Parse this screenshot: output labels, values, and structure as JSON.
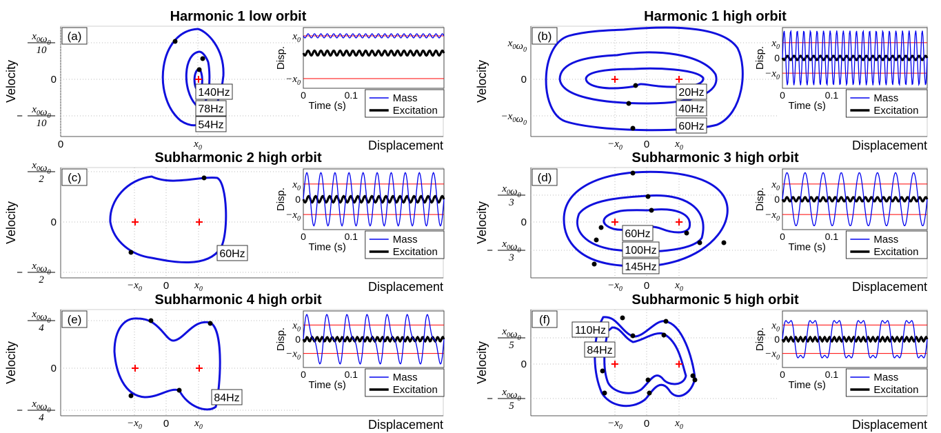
{
  "colors": {
    "orbit": "#1010dd",
    "mass": "#0000ee",
    "excitation": "#000000",
    "threshold": "#ff0000",
    "marker": "#ff0000",
    "grid": "#b8b8b8"
  },
  "chart_data": [
    {
      "id": "a",
      "type": "line",
      "title": "Harmonic 1 low orbit",
      "panel_label": "(a)",
      "xlabel": "Displacement",
      "ylabel": "Velocity",
      "xticks": [
        "0",
        "x0"
      ],
      "yticks": [
        "x0ω0/10",
        "0",
        "−x0ω0/10"
      ],
      "frequencies": [
        "140Hz",
        "78Hz",
        "54Hz"
      ],
      "inset": {
        "ylabel": "Disp.",
        "xlabel": "Time (s)",
        "xticks": [
          "0",
          "0.1"
        ],
        "yticks": [
          "x0",
          "−x0"
        ],
        "legend": [
          "Mass",
          "Excitation"
        ]
      }
    },
    {
      "id": "b",
      "type": "line",
      "title": "Harmonic 1 high orbit",
      "panel_label": "(b)",
      "xlabel": "Displacement",
      "ylabel": "Velocity",
      "xticks": [
        "−x0",
        "0",
        "x0"
      ],
      "yticks": [
        "x0ω0",
        "0",
        "−x0ω0"
      ],
      "frequencies": [
        "20Hz",
        "40Hz",
        "60Hz"
      ],
      "inset": {
        "ylabel": "Disp.",
        "xlabel": "Time (s)",
        "xticks": [
          "0",
          "0.1"
        ],
        "yticks": [
          "x0",
          "0",
          "−x0"
        ],
        "legend": [
          "Mass",
          "Excitation"
        ]
      }
    },
    {
      "id": "c",
      "type": "line",
      "title": "Subharmonic 2 high orbit",
      "panel_label": "(c)",
      "xlabel": "Displacement",
      "ylabel": "Velocity",
      "xticks": [
        "−x0",
        "0",
        "x0"
      ],
      "yticks": [
        "x0ω0/2",
        "0",
        "−x0ω0/2"
      ],
      "frequencies": [
        "60Hz"
      ],
      "inset": {
        "ylabel": "Disp.",
        "xlabel": "Time (s)",
        "xticks": [
          "0",
          "0.1"
        ],
        "yticks": [
          "x0",
          "0",
          "−x0"
        ],
        "legend": [
          "Mass",
          "Excitation"
        ]
      }
    },
    {
      "id": "d",
      "type": "line",
      "title": "Subharmonic 3 high orbit",
      "panel_label": "(d)",
      "xlabel": "Displacement",
      "ylabel": "Velocity",
      "xticks": [
        "−x0",
        "0",
        "x0"
      ],
      "yticks": [
        "x0ω0/3",
        "0",
        "−x0ω0/3"
      ],
      "frequencies": [
        "60Hz",
        "100Hz",
        "145Hz"
      ],
      "inset": {
        "ylabel": "Disp.",
        "xlabel": "Time (s)",
        "xticks": [
          "0",
          "0.1"
        ],
        "yticks": [
          "x0",
          "0",
          "−x0"
        ],
        "legend": [
          "Mass",
          "Excitation"
        ]
      }
    },
    {
      "id": "e",
      "type": "line",
      "title": "Subharmonic 4 high orbit",
      "panel_label": "(e)",
      "xlabel": "Displacement",
      "ylabel": "Velocity",
      "xticks": [
        "−x0",
        "0",
        "x0"
      ],
      "yticks": [
        "x0ω0/4",
        "0",
        "−x0ω0/4"
      ],
      "frequencies": [
        "84Hz"
      ],
      "inset": {
        "ylabel": "Disp.",
        "xlabel": "Time (s)",
        "xticks": [
          "0",
          "0.1"
        ],
        "yticks": [
          "x0",
          "0",
          "−x0"
        ],
        "legend": [
          "Mass",
          "Excitation"
        ]
      }
    },
    {
      "id": "f",
      "type": "line",
      "title": "Subharmonic 5 high orbit",
      "panel_label": "(f)",
      "xlabel": "Displacement",
      "ylabel": "Velocity",
      "xticks": [
        "−x0",
        "0",
        "x0"
      ],
      "yticks": [
        "x0ω0/5",
        "0",
        "−x0ω0/5"
      ],
      "frequencies": [
        "110Hz",
        "84Hz"
      ],
      "inset": {
        "ylabel": "Disp.",
        "xlabel": "Time (s)",
        "xticks": [
          "0",
          "0.1"
        ],
        "yticks": [
          "x0",
          "0",
          "−x0"
        ],
        "legend": [
          "Mass",
          "Excitation"
        ]
      }
    }
  ]
}
